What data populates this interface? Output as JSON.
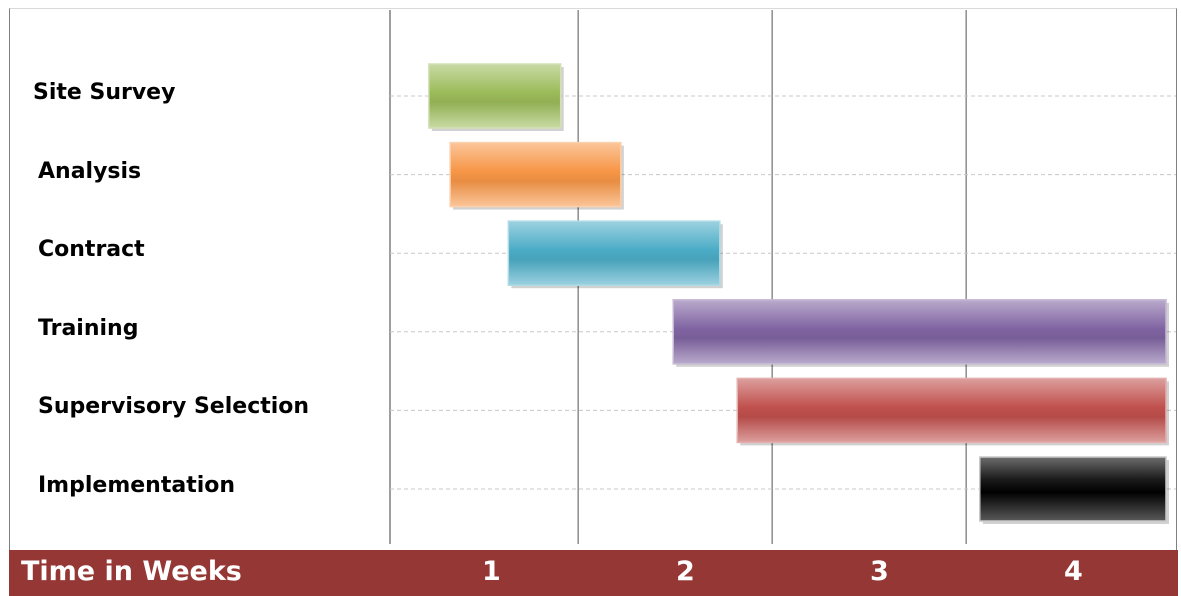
{
  "chart_data": {
    "type": "gantt",
    "xlabel": "Time in Weeks",
    "ticks": [
      1,
      2,
      3,
      4
    ],
    "xlim": [
      0,
      4
    ],
    "tasks": [
      {
        "name": "Site Survey",
        "start": 0.2,
        "end": 0.88,
        "color": "#9bbb59"
      },
      {
        "name": "Analysis",
        "start": 0.31,
        "end": 1.19,
        "color": "#f79646"
      },
      {
        "name": "Contract",
        "start": 0.61,
        "end": 1.7,
        "color": "#4bacc6"
      },
      {
        "name": "Training",
        "start": 1.46,
        "end": 4.0,
        "color": "#8064a2"
      },
      {
        "name": "Supervisory Selection",
        "start": 1.79,
        "end": 4.0,
        "color": "#c0504d"
      },
      {
        "name": "Implementation",
        "start": 3.04,
        "end": 4.0,
        "color": "#1a1a1a"
      }
    ],
    "footer_color": "#953735"
  }
}
